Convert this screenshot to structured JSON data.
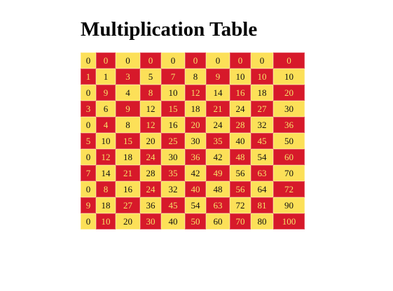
{
  "page": {
    "title": "Multiplication Table"
  },
  "colors": {
    "red": "#d7192a",
    "yellow": "#fce058",
    "text_on_red": "#f5e36a",
    "text_on_yellow": "#111111"
  },
  "table": {
    "rows": [
      [
        "0",
        "0",
        "0",
        "0",
        "0",
        "0",
        "0",
        "0",
        "0",
        "0"
      ],
      [
        "1",
        "1",
        "3",
        "5",
        "7",
        "8",
        "9",
        "10",
        "10",
        "10"
      ],
      [
        "0",
        "9",
        "4",
        "8",
        "10",
        "12",
        "14",
        "16",
        "18",
        "20"
      ],
      [
        "3",
        "6",
        "9",
        "12",
        "15",
        "18",
        "21",
        "24",
        "27",
        "30"
      ],
      [
        "0",
        "4",
        "8",
        "12",
        "16",
        "20",
        "24",
        "28",
        "32",
        "36"
      ],
      [
        "5",
        "10",
        "15",
        "20",
        "25",
        "30",
        "35",
        "40",
        "45",
        "50"
      ],
      [
        "0",
        "12",
        "18",
        "24",
        "30",
        "36",
        "42",
        "48",
        "54",
        "60"
      ],
      [
        "7",
        "14",
        "21",
        "28",
        "35",
        "42",
        "49",
        "56",
        "63",
        "70"
      ],
      [
        "0",
        "8",
        "16",
        "24",
        "32",
        "40",
        "48",
        "56",
        "64",
        "72"
      ],
      [
        "9",
        "18",
        "27",
        "36",
        "45",
        "54",
        "63",
        "72",
        "81",
        "90"
      ],
      [
        "0",
        "10",
        "20",
        "30",
        "40",
        "50",
        "60",
        "70",
        "80",
        "100"
      ]
    ]
  }
}
